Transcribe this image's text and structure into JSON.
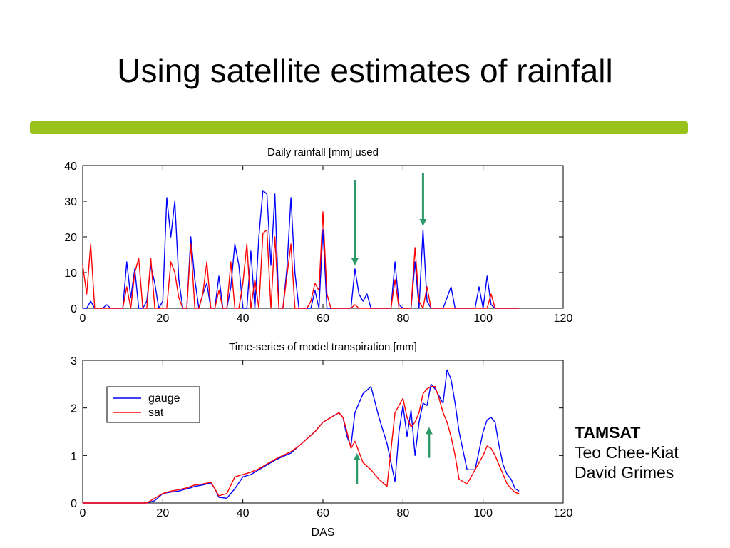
{
  "slide": {
    "title": "Using satellite estimates of rainfall",
    "accent_color": "#99c31c"
  },
  "credits": {
    "org": "TAMSAT",
    "authors": [
      "Teo Chee-Kiat",
      "David Grimes"
    ]
  },
  "colors": {
    "gauge": "#0000ff",
    "sat": "#ff0000",
    "arrow": "#2e9a6a"
  },
  "chart_data": [
    {
      "type": "line",
      "title": "Daily rainfall [mm] used",
      "xlabel": "",
      "ylabel": "",
      "xlim": [
        0,
        120
      ],
      "ylim": [
        0,
        40
      ],
      "xticks": [
        0,
        20,
        40,
        60,
        80,
        100,
        120
      ],
      "yticks": [
        0,
        10,
        20,
        30,
        40
      ],
      "grid": false,
      "series": [
        {
          "name": "gauge",
          "x": [
            0,
            1,
            2,
            3,
            4,
            5,
            6,
            7,
            8,
            9,
            10,
            11,
            12,
            13,
            14,
            15,
            16,
            17,
            18,
            19,
            20,
            21,
            22,
            23,
            24,
            25,
            26,
            27,
            28,
            29,
            30,
            31,
            32,
            33,
            34,
            35,
            36,
            37,
            38,
            39,
            40,
            41,
            42,
            43,
            44,
            45,
            46,
            47,
            48,
            49,
            50,
            51,
            52,
            53,
            54,
            55,
            56,
            57,
            58,
            59,
            60,
            61,
            62,
            63,
            64,
            65,
            66,
            67,
            68,
            69,
            70,
            71,
            72,
            73,
            74,
            75,
            76,
            77,
            78,
            79,
            80,
            81,
            82,
            83,
            84,
            85,
            86,
            87,
            88,
            89,
            90,
            91,
            92,
            93,
            94,
            95,
            96,
            97,
            98,
            99,
            100,
            101,
            102,
            103,
            104,
            105,
            106,
            107,
            108,
            109
          ],
          "y": [
            0,
            0,
            2,
            0,
            0,
            0,
            1,
            0,
            0,
            0,
            0,
            13,
            3,
            11,
            0,
            0,
            2,
            12,
            7,
            0,
            2,
            31,
            20,
            30,
            8,
            0,
            0,
            20,
            8,
            0,
            4,
            7,
            0,
            0,
            9,
            0,
            0,
            6,
            18,
            12,
            0,
            0,
            16,
            0,
            20,
            33,
            32,
            12,
            32,
            0,
            0,
            11,
            31,
            10,
            0,
            0,
            0,
            0,
            5,
            0,
            22,
            0,
            0,
            0,
            0,
            0,
            0,
            0,
            11,
            4,
            2,
            4,
            0,
            0,
            0,
            0,
            0,
            0,
            13,
            1,
            0,
            0,
            0,
            13,
            0,
            22,
            2,
            0,
            0,
            0,
            0,
            3,
            6,
            0,
            0,
            0,
            0,
            0,
            0,
            6,
            0,
            9,
            1,
            0,
            0,
            0,
            0,
            0,
            0,
            0
          ]
        },
        {
          "name": "sat",
          "x": [
            0,
            1,
            2,
            3,
            4,
            5,
            6,
            7,
            8,
            9,
            10,
            11,
            12,
            13,
            14,
            15,
            16,
            17,
            18,
            19,
            20,
            21,
            22,
            23,
            24,
            25,
            26,
            27,
            28,
            29,
            30,
            31,
            32,
            33,
            34,
            35,
            36,
            37,
            38,
            39,
            40,
            41,
            42,
            43,
            44,
            45,
            46,
            47,
            48,
            49,
            50,
            51,
            52,
            53,
            54,
            55,
            56,
            57,
            58,
            59,
            60,
            61,
            62,
            63,
            64,
            65,
            66,
            67,
            68,
            69,
            70,
            71,
            72,
            73,
            74,
            75,
            76,
            77,
            78,
            79,
            80,
            81,
            82,
            83,
            84,
            85,
            86,
            87,
            88,
            89,
            90,
            91,
            92,
            93,
            94,
            95,
            96,
            97,
            98,
            99,
            100,
            101,
            102,
            103,
            104,
            105,
            106,
            107,
            108,
            109
          ],
          "y": [
            12,
            4,
            18,
            0,
            0,
            0,
            0,
            0,
            0,
            0,
            0,
            6,
            0,
            10,
            14,
            0,
            0,
            14,
            0,
            0,
            0,
            0,
            13,
            10,
            3,
            0,
            0,
            18,
            0,
            0,
            4,
            13,
            0,
            0,
            5,
            0,
            0,
            13,
            0,
            0,
            7,
            18,
            0,
            8,
            0,
            21,
            22,
            0,
            20,
            0,
            0,
            9,
            18,
            0,
            0,
            0,
            0,
            2,
            7,
            5,
            27,
            4,
            0,
            0,
            0,
            0,
            0,
            0,
            1,
            0,
            0,
            0,
            0,
            0,
            0,
            0,
            0,
            0,
            8,
            0,
            0,
            0,
            0,
            17,
            2,
            0,
            6,
            0,
            0,
            0,
            0,
            0,
            0,
            0,
            0,
            0,
            0,
            0,
            0,
            0,
            0,
            0,
            4,
            0,
            0,
            0,
            0,
            0,
            0,
            0
          ]
        }
      ]
    },
    {
      "type": "line",
      "title": "Time-series of model transpiration [mm]",
      "xlabel": "DAS",
      "ylabel": "",
      "xlim": [
        0,
        120
      ],
      "ylim": [
        0,
        3
      ],
      "xticks": [
        0,
        20,
        40,
        60,
        80,
        100,
        120
      ],
      "yticks": [
        0,
        1,
        2,
        3
      ],
      "grid": false,
      "legend": "upper-left",
      "series": [
        {
          "name": "gauge",
          "x": [
            0,
            16,
            18,
            20,
            22,
            24,
            26,
            27,
            28,
            30,
            31,
            32,
            33,
            34,
            36,
            38,
            40,
            42,
            44,
            46,
            48,
            50,
            52,
            54,
            56,
            58,
            60,
            62,
            64,
            65,
            66,
            67,
            68,
            70,
            72,
            74,
            76,
            78,
            79,
            80,
            81,
            82,
            83,
            84,
            85,
            86,
            87,
            88,
            90,
            91,
            92,
            93,
            94,
            96,
            98,
            100,
            101,
            102,
            103,
            104,
            105,
            106,
            107,
            108,
            109
          ],
          "y": [
            0,
            0,
            0.05,
            0.2,
            0.23,
            0.25,
            0.3,
            0.32,
            0.35,
            0.38,
            0.4,
            0.42,
            0.3,
            0.12,
            0.1,
            0.3,
            0.55,
            0.6,
            0.7,
            0.8,
            0.9,
            0.98,
            1.05,
            1.2,
            1.35,
            1.5,
            1.7,
            1.8,
            1.9,
            1.8,
            1.4,
            1.2,
            1.9,
            2.3,
            2.45,
            1.8,
            1.25,
            0.45,
            1.5,
            2.05,
            1.4,
            1.95,
            1.0,
            1.7,
            2.1,
            2.05,
            2.5,
            2.4,
            2.1,
            2.8,
            2.6,
            2.1,
            1.5,
            0.7,
            0.7,
            1.5,
            1.75,
            1.8,
            1.7,
            1.2,
            0.8,
            0.6,
            0.5,
            0.3,
            0.25
          ]
        },
        {
          "name": "sat",
          "x": [
            0,
            16,
            18,
            20,
            22,
            24,
            26,
            27,
            28,
            30,
            31,
            32,
            33,
            34,
            36,
            38,
            40,
            42,
            44,
            46,
            48,
            50,
            52,
            54,
            56,
            58,
            60,
            62,
            64,
            65,
            66,
            67,
            68,
            70,
            72,
            74,
            76,
            78,
            80,
            81,
            82,
            83,
            84,
            85,
            86,
            87,
            88,
            89,
            90,
            91,
            92,
            93,
            94,
            96,
            98,
            100,
            101,
            102,
            103,
            104,
            105,
            106,
            107,
            108,
            109
          ],
          "y": [
            0,
            0,
            0.1,
            0.2,
            0.25,
            0.28,
            0.32,
            0.35,
            0.38,
            0.4,
            0.42,
            0.44,
            0.3,
            0.15,
            0.2,
            0.55,
            0.6,
            0.65,
            0.72,
            0.82,
            0.92,
            1.0,
            1.08,
            1.2,
            1.35,
            1.5,
            1.7,
            1.8,
            1.9,
            1.8,
            1.5,
            1.15,
            1.3,
            0.85,
            0.7,
            0.5,
            0.35,
            1.9,
            2.2,
            1.8,
            1.6,
            1.7,
            1.9,
            2.3,
            2.4,
            2.45,
            2.45,
            2.2,
            1.9,
            1.7,
            1.4,
            1.0,
            0.5,
            0.4,
            0.7,
            1.0,
            1.2,
            1.15,
            1.0,
            0.8,
            0.6,
            0.4,
            0.3,
            0.22,
            0.2
          ]
        }
      ]
    }
  ]
}
